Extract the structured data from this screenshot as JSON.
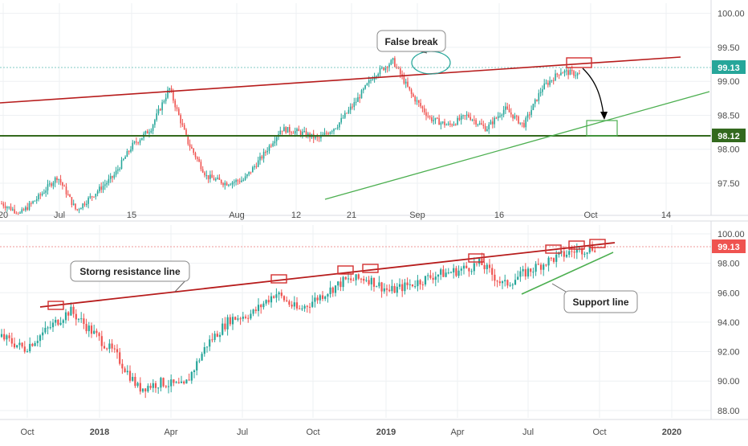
{
  "colors": {
    "up": "#26a69a",
    "down": "#ef5350",
    "resistance": "#b71c1c",
    "support": "#4caf50",
    "support_dark": "#33691e",
    "marker": "#d32f2f",
    "price_line_top": "#80cbc4",
    "price_line_bottom": "#ef9a9a",
    "grid": "#eef0f3",
    "axis_text": "#4a4a4a",
    "top_price_bg": "#26a69a",
    "bottom_price_bg": "#ef5350",
    "support_price_bg": "#33691e"
  },
  "chart_data": [
    {
      "type": "candlestick",
      "timeframe_view": "daily",
      "x_ticks": [
        "20",
        "Jul",
        "15",
        "Aug",
        "12",
        "21",
        "Sep",
        "16",
        "Oct",
        "14"
      ],
      "y_ticks": [
        "100.00",
        "99.50",
        "99.00",
        "98.50",
        "98.00",
        "97.50"
      ],
      "ylim": [
        97.05,
        100.15
      ],
      "price_labels": [
        {
          "name": "current",
          "value": "99.13"
        },
        {
          "name": "support-level",
          "value": "98.12"
        }
      ],
      "annotations": [
        {
          "name": "false-break",
          "text": "False break"
        }
      ],
      "close_path": [
        [
          "Jun 20",
          97.2
        ],
        [
          "Jun 26",
          97.05
        ],
        [
          "Jul 4",
          97.3
        ],
        [
          "Jul 10",
          97.6
        ],
        [
          "Jul 15",
          97.1
        ],
        [
          "Jul 19",
          97.35
        ],
        [
          "Jul 24",
          97.6
        ],
        [
          "Jul 29",
          98.05
        ],
        [
          "Aug 1",
          98.3
        ],
        [
          "Aug 2",
          98.9
        ],
        [
          "Aug 5",
          98.1
        ],
        [
          "Aug 7",
          97.6
        ],
        [
          "Aug 12",
          97.5
        ],
        [
          "Aug 16",
          97.55
        ],
        [
          "Aug 19",
          97.9
        ],
        [
          "Aug 22",
          98.3
        ],
        [
          "Aug 26",
          98.25
        ],
        [
          "Aug 28",
          98.15
        ],
        [
          "Aug 30",
          98.35
        ],
        [
          "Sep 3",
          98.7
        ],
        [
          "Sep 4",
          99.1
        ],
        [
          "Sep 6",
          99.3
        ],
        [
          "Sep 9",
          98.8
        ],
        [
          "Sep 11",
          98.45
        ],
        [
          "Sep 16",
          98.35
        ],
        [
          "Sep 18",
          98.5
        ],
        [
          "Sep 20",
          98.3
        ],
        [
          "Sep 23",
          98.6
        ],
        [
          "Sep 25",
          98.35
        ],
        [
          "Sep 27",
          98.9
        ],
        [
          "Sep 30",
          99.15
        ],
        [
          "Oct 1",
          99.1
        ]
      ]
    },
    {
      "type": "candlestick",
      "timeframe_view": "weekly",
      "x_ticks": [
        "Oct",
        "2018",
        "Apr",
        "Jul",
        "Oct",
        "2019",
        "Apr",
        "Jul",
        "Oct",
        "2020"
      ],
      "y_ticks": [
        "100.00",
        "98.00",
        "96.00",
        "94.00",
        "92.00",
        "90.00",
        "88.00"
      ],
      "ylim": [
        87.5,
        100.6
      ],
      "price_labels": [
        {
          "name": "current",
          "value": "99.13"
        }
      ],
      "annotations": [
        {
          "name": "resistance-line",
          "text": "Storng resistance line"
        },
        {
          "name": "support-line",
          "text": "Support line"
        }
      ],
      "close_path": [
        [
          "Aug 2017",
          93.0
        ],
        [
          "Sep 2017",
          92.2
        ],
        [
          "Oct 2017",
          93.5
        ],
        [
          "Nov 2017",
          94.8
        ],
        [
          "Dec 2017",
          93.3
        ],
        [
          "Jan 2018",
          91.8
        ],
        [
          "Feb 2018",
          89.5
        ],
        [
          "Mar 2018",
          89.9
        ],
        [
          "Apr 2018",
          89.6
        ],
        [
          "May 2018",
          92.5
        ],
        [
          "Jun 2018",
          94.2
        ],
        [
          "Jul 2018",
          94.6
        ],
        [
          "Aug 2018",
          96.0
        ],
        [
          "Sep 2018",
          94.8
        ],
        [
          "Oct 2018",
          95.8
        ],
        [
          "Nov 2018",
          96.8
        ],
        [
          "Dec 2018",
          97.0
        ],
        [
          "Jan 2019",
          96.1
        ],
        [
          "Feb 2019",
          96.6
        ],
        [
          "Mar 2019",
          97.2
        ],
        [
          "Apr 2019",
          97.5
        ],
        [
          "May 2019",
          98.0
        ],
        [
          "Jun 2019",
          96.5
        ],
        [
          "Jul 2019",
          97.4
        ],
        [
          "Aug 2019",
          98.2
        ],
        [
          "Sep 2019",
          98.8
        ],
        [
          "Oct 2019",
          99.1
        ]
      ]
    }
  ]
}
